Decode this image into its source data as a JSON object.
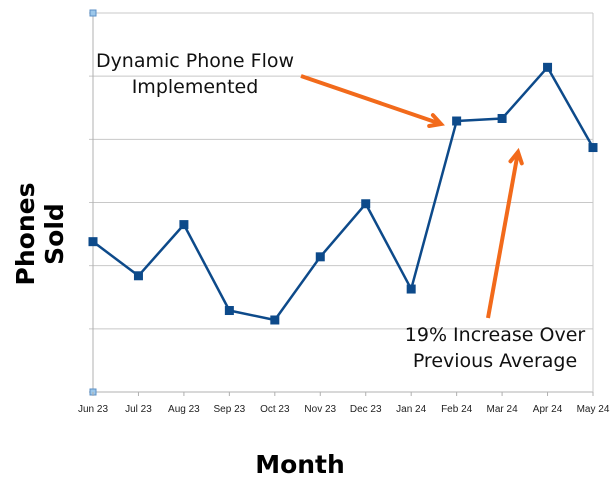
{
  "chart_data": {
    "type": "line",
    "title": "",
    "xlabel": "Month",
    "ylabel": "Phones Sold",
    "categories": [
      "Jun 23",
      "Jul 23",
      "Aug 23",
      "Sep 23",
      "Oct 23",
      "Nov 23",
      "Dec 23",
      "Jan 24",
      "Feb 24",
      "Mar 24",
      "Apr 24",
      "May 24"
    ],
    "series": [
      {
        "name": "Phones Sold",
        "values": [
          2.38,
          1.84,
          2.65,
          1.29,
          1.14,
          2.14,
          2.98,
          1.63,
          4.29,
          4.33,
          5.14,
          3.87
        ]
      }
    ],
    "ylim": [
      0,
      6
    ],
    "y_ticks_labeled": false,
    "grid": true,
    "annotations": [
      {
        "text_lines": [
          "Dynamic Phone Flow",
          "Implemented"
        ],
        "points_to": "Feb 24"
      },
      {
        "text_lines": [
          "19% Increase Over",
          "Previous Average"
        ],
        "points_to": "Mar 24"
      }
    ],
    "colors": {
      "line": "#0d4a8a",
      "arrow": "#f26a1b",
      "grid": "#c8c8c8"
    }
  }
}
